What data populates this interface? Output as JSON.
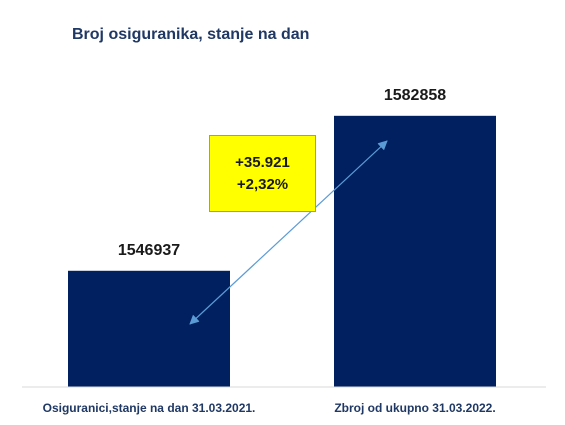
{
  "chart_data": {
    "type": "bar",
    "title": "Broj osiguranika, stanje na dan",
    "categories": [
      "Osiguranici,stanje na dan 31.03.2021.",
      "Zbroj od ukupno 31.03.2022."
    ],
    "values": [
      1546937,
      1582858
    ],
    "data_labels": [
      "1546937",
      "1582858"
    ],
    "xlabel": "",
    "ylabel": "",
    "ylim": [
      1520000,
      1590000
    ],
    "grid": false,
    "legend": "none",
    "bar_color": "#002060",
    "annotation": {
      "lines": [
        "+35.921",
        "+2,32%"
      ],
      "background": "#ffff00",
      "arrow_color": "#5b9bd5"
    }
  }
}
